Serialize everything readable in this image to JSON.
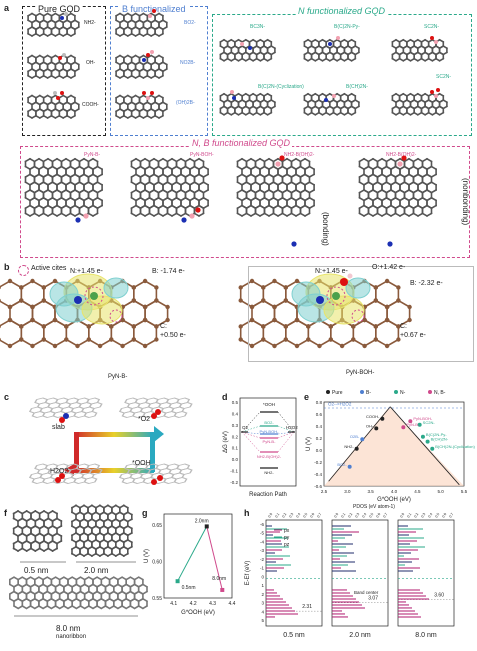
{
  "panel_labels": {
    "a": "a",
    "b": "b",
    "c": "c",
    "d": "d",
    "e": "e",
    "f": "f",
    "g": "g",
    "h": "h"
  },
  "panel_a": {
    "group_pure": {
      "title": "Pure GQD",
      "labels": [
        "NH2-",
        "OH-",
        "COOH-"
      ]
    },
    "group_b": {
      "title": "B functionalized",
      "labels": [
        "BO2-",
        "NO2B-",
        "(OH)2B-"
      ]
    },
    "group_n": {
      "title": "N functionalized GQD",
      "labels": [
        "BC3N-",
        "B(C)2N-Py-",
        "SC2N-",
        "B(C)2N-(Cyclization)",
        "B(CH)2N-",
        "SC2N-"
      ]
    },
    "group_nb": {
      "title": "N, B functionalized GQD",
      "labels": [
        "PyN-B-",
        "PyN-BOH-",
        "NH2-B(OH)2-",
        "NH2-B(OH)2-"
      ],
      "side_labels": [
        "(bonding)",
        "(nonbonding)"
      ]
    }
  },
  "panel_b": {
    "legend": "Active cites",
    "left": {
      "n_charge": "N:+1.45 e-",
      "b_charge": "B: -1.74 e-",
      "c_charge": "C:\n+0.50 e-",
      "caption": "PyN-B-"
    },
    "right": {
      "n_charge": "N:+1.45 e-",
      "o_charge": "O:+1.42 e-",
      "b_charge": "B: -2.32 e-",
      "c_charge": "C:\n+0.67 e-",
      "caption": "PyN-BOH-"
    }
  },
  "panel_c": {
    "labels": {
      "slab": "slab",
      "o2": "*O2",
      "h2o2": "H2O2",
      "ooh": "*OOH"
    }
  },
  "panel_d": {
    "ylabel": "ΔG (eV)",
    "xlabel": "Reaction Path",
    "yticks": [
      "0.5",
      "0.4",
      "0.3",
      "0.2",
      "0.1",
      "0.0",
      "-0.1",
      "-0.2"
    ],
    "labels": {
      "top": "*OOH",
      "o2": "O2",
      "h2o2": "H2O2",
      "bo2": "BO2-",
      "pyn_boh": "PyN-BOH-",
      "pyn_b": "PyN-B-",
      "nh2_boh": "NH2-B(OH)2-",
      "nh2": "NH2-"
    }
  },
  "panel_e": {
    "legend": [
      "Pure",
      "B-",
      "N-",
      "N, B-"
    ],
    "legend_colors": [
      "#222222",
      "#4f7fd0",
      "#2aa98a",
      "#d04a8c"
    ],
    "ylabel": "U (V)",
    "xlabel": "G*OOH (eV)",
    "xticks": [
      "2.5",
      "3.0",
      "3.5",
      "4.0",
      "4.5",
      "5.0",
      "5.5"
    ],
    "yticks": [
      "0.8",
      "0.6",
      "0.4",
      "0.2",
      "0.0",
      "-0.2",
      "-0.4",
      "-0.6"
    ],
    "labels": {
      "o2h2o2": "O2-->H2O2",
      "cooh": "COOH-",
      "oh": "OH-",
      "nh2": "NH2-",
      "o2b": "O2B-",
      "bo2": "BO2-",
      "sc2n": "SC2N-",
      "bc3n": "B(C)2N-Py-",
      "bch": "B(CH)2N-",
      "bcyc": "B(CH)2N-(Cyclization)",
      "pynb": "PyN-B-",
      "pynboh": "PyN-BOH-"
    }
  },
  "panel_f": {
    "labels": [
      "0.5 nm",
      "2.0 nm",
      "8.0 nm",
      "nanoribbon"
    ]
  },
  "panel_g": {
    "ylabel": "U (V)",
    "xlabel": "G*OOH (eV)",
    "yticks": [
      "0.65",
      "0.60",
      "0.55"
    ],
    "xticks": [
      "4.1",
      "4.2",
      "4.3",
      "4.4"
    ],
    "points": [
      {
        "label": "0.5nm",
        "x": 4.12,
        "y": 0.573
      },
      {
        "label": "2.0nm",
        "x": 4.27,
        "y": 0.648
      },
      {
        "label": "8.0nm",
        "x": 4.35,
        "y": 0.561
      }
    ]
  },
  "panel_h": {
    "title": "PDOS (eV atom-1)",
    "ylabel": "E-Ef (eV)",
    "legend": [
      "px",
      "py",
      "pz"
    ],
    "legend_colors": [
      "#b0186e",
      "#2aa98a",
      "#1f2b6b"
    ],
    "yticks": [
      "-6",
      "-5",
      "-4",
      "-3",
      "-2",
      "-1",
      "0",
      "1",
      "2",
      "3",
      "4",
      "5"
    ],
    "values": [
      "2.31",
      "3.07",
      "3.60"
    ],
    "band_center": "Band center",
    "captions": [
      "0.5 nm",
      "2.0 nm",
      "8.0 nm"
    ]
  }
}
